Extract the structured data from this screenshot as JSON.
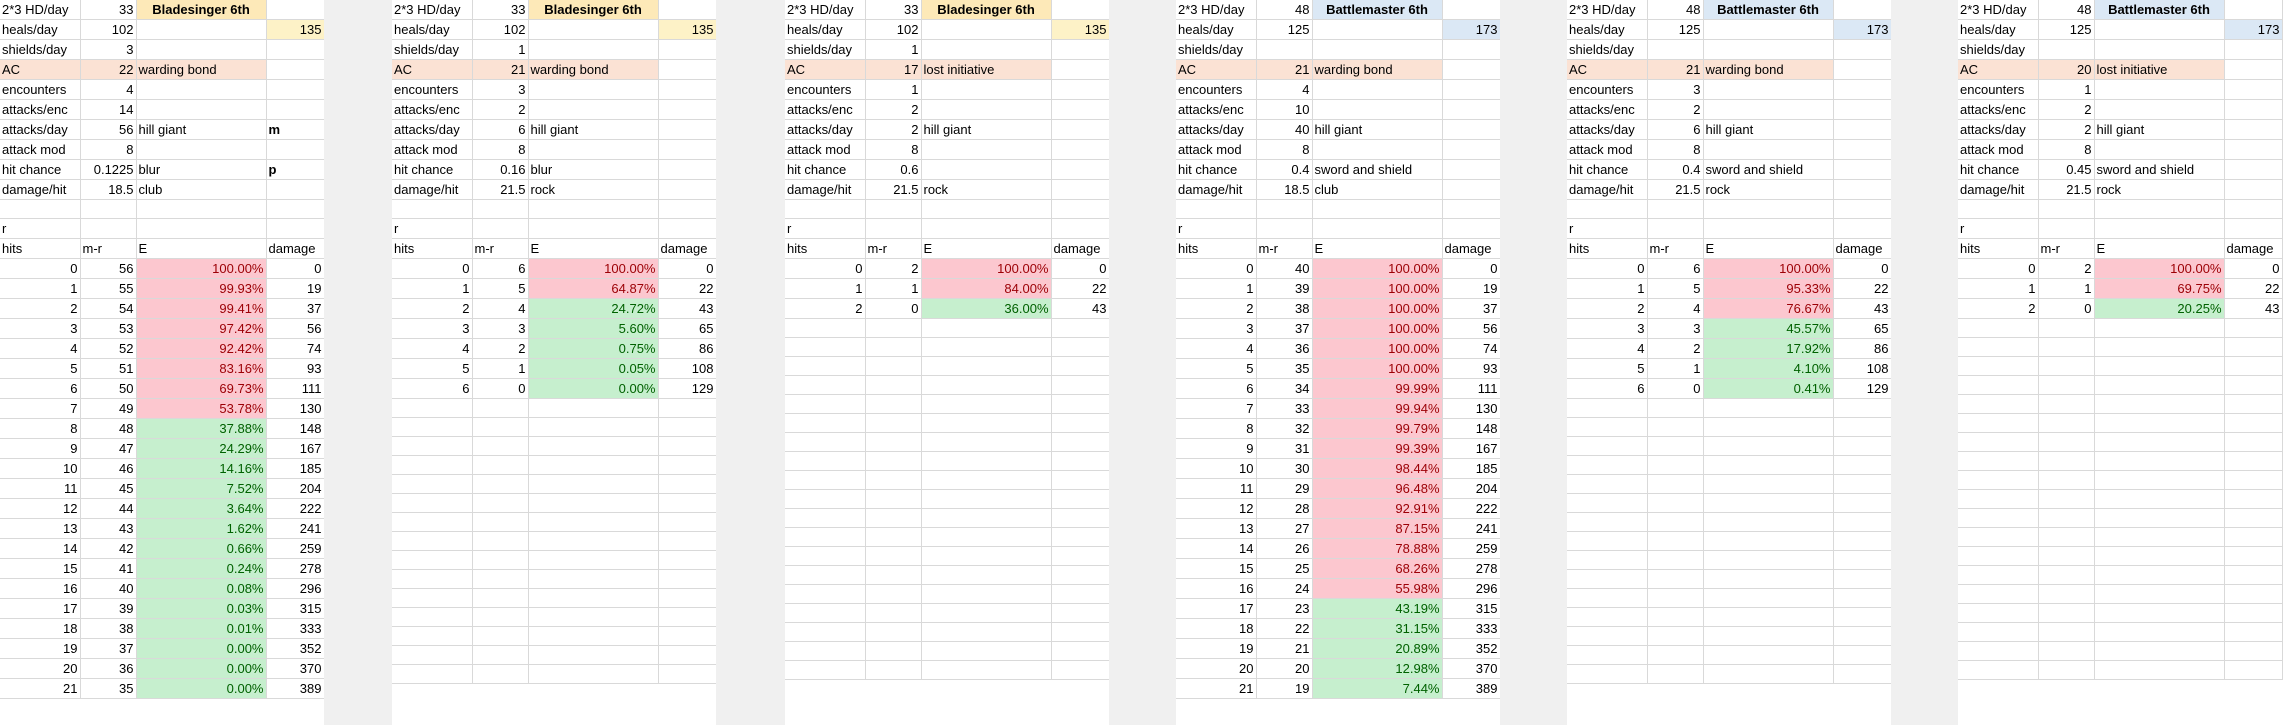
{
  "labels": {
    "hd": "2*3 HD/day",
    "heals": "heals/day",
    "shields": "shields/day",
    "ac": "AC",
    "encounters": "encounters",
    "attacks_enc": "attacks/enc",
    "attacks_day": "attacks/day",
    "attack_mod": "attack mod",
    "hit_chance": "hit chance",
    "damage_hit": "damage/hit",
    "r": "r",
    "hits": "hits",
    "mr": "m-r",
    "E": "E",
    "damage": "damage"
  },
  "colors": {
    "red_bg": "#fcc7cf",
    "red_text": "#9c0006",
    "green_bg": "#c6efce",
    "green_text": "#006100",
    "bladesinger_header": "#fde9b8",
    "battlemaster_header": "#dbe8f5",
    "ac_bg": "#fbe2d4"
  },
  "sheets": [
    {
      "kind": "bs",
      "title": "Bladesinger 6th",
      "hd": "33",
      "heals": "102",
      "heals_total": "135",
      "shields": "3",
      "ac": "22",
      "ac_note": "warding bond",
      "encounters": "4",
      "attacks_enc": "14",
      "attacks_day": "56",
      "attacks_note": "hill giant",
      "extra_m": "m",
      "attack_mod": "8",
      "hit_chance": "0.1225",
      "hit_note": "blur",
      "extra_p": "p",
      "damage_hit": "18.5",
      "damage_note": "club",
      "rows": [
        [
          "0",
          "56",
          "100.00%",
          "0",
          "r"
        ],
        [
          "1",
          "55",
          "99.93%",
          "19",
          "r"
        ],
        [
          "2",
          "54",
          "99.41%",
          "37",
          "r"
        ],
        [
          "3",
          "53",
          "97.42%",
          "56",
          "r"
        ],
        [
          "4",
          "52",
          "92.42%",
          "74",
          "r"
        ],
        [
          "5",
          "51",
          "83.16%",
          "93",
          "r"
        ],
        [
          "6",
          "50",
          "69.73%",
          "111",
          "r"
        ],
        [
          "7",
          "49",
          "53.78%",
          "130",
          "r"
        ],
        [
          "8",
          "48",
          "37.88%",
          "148",
          "g"
        ],
        [
          "9",
          "47",
          "24.29%",
          "167",
          "g"
        ],
        [
          "10",
          "46",
          "14.16%",
          "185",
          "g"
        ],
        [
          "11",
          "45",
          "7.52%",
          "204",
          "g"
        ],
        [
          "12",
          "44",
          "3.64%",
          "222",
          "g"
        ],
        [
          "13",
          "43",
          "1.62%",
          "241",
          "g"
        ],
        [
          "14",
          "42",
          "0.66%",
          "259",
          "g"
        ],
        [
          "15",
          "41",
          "0.24%",
          "278",
          "g"
        ],
        [
          "16",
          "40",
          "0.08%",
          "296",
          "g"
        ],
        [
          "17",
          "39",
          "0.03%",
          "315",
          "g"
        ],
        [
          "18",
          "38",
          "0.01%",
          "333",
          "g"
        ],
        [
          "19",
          "37",
          "0.00%",
          "352",
          "g"
        ],
        [
          "20",
          "36",
          "0.00%",
          "370",
          "g"
        ],
        [
          "21",
          "35",
          "0.00%",
          "389",
          "g"
        ]
      ]
    },
    {
      "kind": "bs",
      "title": "Bladesinger 6th",
      "hd": "33",
      "heals": "102",
      "heals_total": "135",
      "shields": "1",
      "ac": "21",
      "ac_note": "warding bond",
      "encounters": "3",
      "attacks_enc": "2",
      "attacks_day": "6",
      "attacks_note": "hill giant",
      "extra_m": "",
      "attack_mod": "8",
      "hit_chance": "0.16",
      "hit_note": "blur",
      "extra_p": "",
      "damage_hit": "21.5",
      "damage_note": "rock",
      "rows": [
        [
          "0",
          "6",
          "100.00%",
          "0",
          "r"
        ],
        [
          "1",
          "5",
          "64.87%",
          "22",
          "r"
        ],
        [
          "2",
          "4",
          "24.72%",
          "43",
          "g"
        ],
        [
          "3",
          "3",
          "5.60%",
          "65",
          "g"
        ],
        [
          "4",
          "2",
          "0.75%",
          "86",
          "g"
        ],
        [
          "5",
          "1",
          "0.05%",
          "108",
          "g"
        ],
        [
          "6",
          "0",
          "0.00%",
          "129",
          "g"
        ]
      ]
    },
    {
      "kind": "bs",
      "title": "Bladesinger 6th",
      "hd": "33",
      "heals": "102",
      "heals_total": "135",
      "shields": "1",
      "ac": "17",
      "ac_note": "lost initiative",
      "encounters": "1",
      "attacks_enc": "2",
      "attacks_day": "2",
      "attacks_note": "hill giant",
      "extra_m": "",
      "attack_mod": "8",
      "hit_chance": "0.6",
      "hit_note": "",
      "extra_p": "",
      "damage_hit": "21.5",
      "damage_note": "rock",
      "rows": [
        [
          "0",
          "2",
          "100.00%",
          "0",
          "r"
        ],
        [
          "1",
          "1",
          "84.00%",
          "22",
          "r"
        ],
        [
          "2",
          "0",
          "36.00%",
          "43",
          "g"
        ]
      ]
    },
    {
      "kind": "bm",
      "title": "Battlemaster 6th",
      "hd": "48",
      "heals": "125",
      "heals_total": "173",
      "shields": "",
      "ac": "21",
      "ac_note": "warding bond",
      "encounters": "4",
      "attacks_enc": "10",
      "attacks_day": "40",
      "attacks_note": "hill giant",
      "extra_m": "",
      "attack_mod": "8",
      "hit_chance": "0.4",
      "hit_note": "sword and shield",
      "extra_p": "",
      "damage_hit": "18.5",
      "damage_note": "club",
      "rows": [
        [
          "0",
          "40",
          "100.00%",
          "0",
          "r"
        ],
        [
          "1",
          "39",
          "100.00%",
          "19",
          "r"
        ],
        [
          "2",
          "38",
          "100.00%",
          "37",
          "r"
        ],
        [
          "3",
          "37",
          "100.00%",
          "56",
          "r"
        ],
        [
          "4",
          "36",
          "100.00%",
          "74",
          "r"
        ],
        [
          "5",
          "35",
          "100.00%",
          "93",
          "r"
        ],
        [
          "6",
          "34",
          "99.99%",
          "111",
          "r"
        ],
        [
          "7",
          "33",
          "99.94%",
          "130",
          "r"
        ],
        [
          "8",
          "32",
          "99.79%",
          "148",
          "r"
        ],
        [
          "9",
          "31",
          "99.39%",
          "167",
          "r"
        ],
        [
          "10",
          "30",
          "98.44%",
          "185",
          "r"
        ],
        [
          "11",
          "29",
          "96.48%",
          "204",
          "r"
        ],
        [
          "12",
          "28",
          "92.91%",
          "222",
          "r"
        ],
        [
          "13",
          "27",
          "87.15%",
          "241",
          "r"
        ],
        [
          "14",
          "26",
          "78.88%",
          "259",
          "r"
        ],
        [
          "15",
          "25",
          "68.26%",
          "278",
          "r"
        ],
        [
          "16",
          "24",
          "55.98%",
          "296",
          "r"
        ],
        [
          "17",
          "23",
          "43.19%",
          "315",
          "g"
        ],
        [
          "18",
          "22",
          "31.15%",
          "333",
          "g"
        ],
        [
          "19",
          "21",
          "20.89%",
          "352",
          "g"
        ],
        [
          "20",
          "20",
          "12.98%",
          "370",
          "g"
        ],
        [
          "21",
          "19",
          "7.44%",
          "389",
          "g"
        ]
      ]
    },
    {
      "kind": "bm",
      "title": "Battlemaster 6th",
      "hd": "48",
      "heals": "125",
      "heals_total": "173",
      "shields": "",
      "ac": "21",
      "ac_note": "warding bond",
      "encounters": "3",
      "attacks_enc": "2",
      "attacks_day": "6",
      "attacks_note": "hill giant",
      "extra_m": "",
      "attack_mod": "8",
      "hit_chance": "0.4",
      "hit_note": "sword and shield",
      "extra_p": "",
      "damage_hit": "21.5",
      "damage_note": "rock",
      "rows": [
        [
          "0",
          "6",
          "100.00%",
          "0",
          "r"
        ],
        [
          "1",
          "5",
          "95.33%",
          "22",
          "r"
        ],
        [
          "2",
          "4",
          "76.67%",
          "43",
          "r"
        ],
        [
          "3",
          "3",
          "45.57%",
          "65",
          "g"
        ],
        [
          "4",
          "2",
          "17.92%",
          "86",
          "g"
        ],
        [
          "5",
          "1",
          "4.10%",
          "108",
          "g"
        ],
        [
          "6",
          "0",
          "0.41%",
          "129",
          "g"
        ]
      ]
    },
    {
      "kind": "bm",
      "title": "Battlemaster 6th",
      "hd": "48",
      "heals": "125",
      "heals_total": "173",
      "shields": "",
      "ac": "20",
      "ac_note": "lost initiative",
      "encounters": "1",
      "attacks_enc": "2",
      "attacks_day": "2",
      "attacks_note": "hill giant",
      "extra_m": "",
      "attack_mod": "8",
      "hit_chance": "0.45",
      "hit_note": "sword and shield",
      "extra_p": "",
      "damage_hit": "21.5",
      "damage_note": "rock",
      "rows": [
        [
          "0",
          "2",
          "100.00%",
          "0",
          "r"
        ],
        [
          "1",
          "1",
          "69.75%",
          "22",
          "r"
        ],
        [
          "2",
          "0",
          "20.25%",
          "43",
          "g"
        ]
      ]
    }
  ]
}
